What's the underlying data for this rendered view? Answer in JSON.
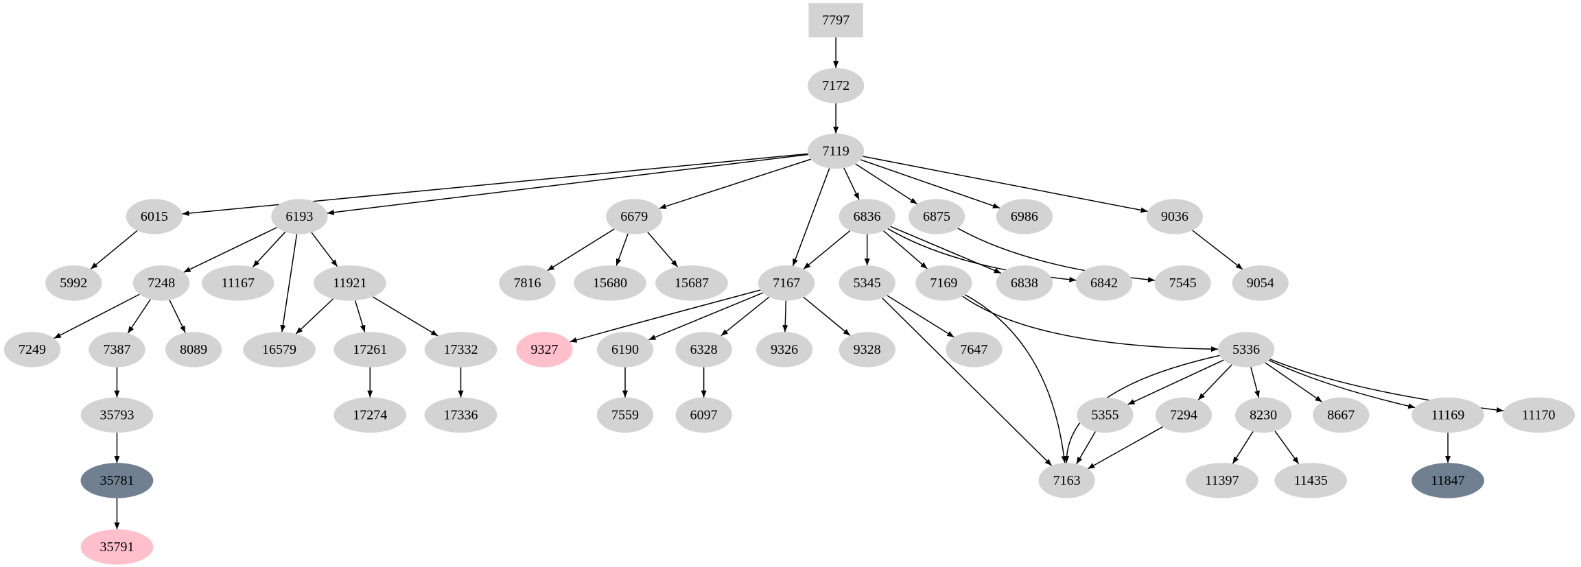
{
  "graph": {
    "default_color": "#d3d3d3",
    "nodes": [
      {
        "id": "7797",
        "shape": "box"
      },
      {
        "id": "7172"
      },
      {
        "id": "7119"
      },
      {
        "id": "6015"
      },
      {
        "id": "6193"
      },
      {
        "id": "6679"
      },
      {
        "id": "6836"
      },
      {
        "id": "6875"
      },
      {
        "id": "6986"
      },
      {
        "id": "9036"
      },
      {
        "id": "5992"
      },
      {
        "id": "7248"
      },
      {
        "id": "11167"
      },
      {
        "id": "11921"
      },
      {
        "id": "7816"
      },
      {
        "id": "15680"
      },
      {
        "id": "15687"
      },
      {
        "id": "7167"
      },
      {
        "id": "5345"
      },
      {
        "id": "7169"
      },
      {
        "id": "6838"
      },
      {
        "id": "6842"
      },
      {
        "id": "7545"
      },
      {
        "id": "9054"
      },
      {
        "id": "7249"
      },
      {
        "id": "7387"
      },
      {
        "id": "8089"
      },
      {
        "id": "16579"
      },
      {
        "id": "17261"
      },
      {
        "id": "17332"
      },
      {
        "id": "9327",
        "color": "#ffc0cb"
      },
      {
        "id": "6190"
      },
      {
        "id": "6328"
      },
      {
        "id": "9326"
      },
      {
        "id": "9328"
      },
      {
        "id": "7647"
      },
      {
        "id": "5336"
      },
      {
        "id": "35793"
      },
      {
        "id": "17274"
      },
      {
        "id": "17336"
      },
      {
        "id": "7559"
      },
      {
        "id": "6097"
      },
      {
        "id": "5355"
      },
      {
        "id": "7294"
      },
      {
        "id": "8230"
      },
      {
        "id": "8667"
      },
      {
        "id": "11169"
      },
      {
        "id": "11170"
      },
      {
        "id": "35781",
        "color": "#708090"
      },
      {
        "id": "7163"
      },
      {
        "id": "11397"
      },
      {
        "id": "11435"
      },
      {
        "id": "11847",
        "color": "#708090"
      },
      {
        "id": "35791",
        "color": "#ffc0cb"
      }
    ],
    "edges": [
      [
        "7797",
        "7172"
      ],
      [
        "7172",
        "7119"
      ],
      [
        "7119",
        "6015"
      ],
      [
        "7119",
        "6193"
      ],
      [
        "7119",
        "6679"
      ],
      [
        "7119",
        "7167"
      ],
      [
        "7119",
        "6836"
      ],
      [
        "7119",
        "6875"
      ],
      [
        "7119",
        "6986"
      ],
      [
        "7119",
        "9036"
      ],
      [
        "6015",
        "5992"
      ],
      [
        "6193",
        "7248"
      ],
      [
        "6193",
        "11167"
      ],
      [
        "6193",
        "16579"
      ],
      [
        "6193",
        "11921"
      ],
      [
        "6679",
        "7816"
      ],
      [
        "6679",
        "15680"
      ],
      [
        "6679",
        "15687"
      ],
      [
        "6836",
        "7167"
      ],
      [
        "6836",
        "5345"
      ],
      [
        "6836",
        "7169"
      ],
      [
        "6836",
        "6838"
      ],
      [
        "6836",
        "6842"
      ],
      [
        "6875",
        "7545"
      ],
      [
        "9036",
        "9054"
      ],
      [
        "7248",
        "7249"
      ],
      [
        "7248",
        "7387"
      ],
      [
        "7248",
        "8089"
      ],
      [
        "11921",
        "16579"
      ],
      [
        "11921",
        "17261"
      ],
      [
        "11921",
        "17332"
      ],
      [
        "7167",
        "9327"
      ],
      [
        "7167",
        "6190"
      ],
      [
        "7167",
        "6328"
      ],
      [
        "7167",
        "9326"
      ],
      [
        "7167",
        "9328"
      ],
      [
        "5345",
        "7647"
      ],
      [
        "5345",
        "7163"
      ],
      [
        "7169",
        "7163"
      ],
      [
        "7169",
        "5336"
      ],
      [
        "7387",
        "35793"
      ],
      [
        "17261",
        "17274"
      ],
      [
        "17332",
        "17336"
      ],
      [
        "6190",
        "7559"
      ],
      [
        "6328",
        "6097"
      ],
      [
        "5336",
        "7163"
      ],
      [
        "5336",
        "5355"
      ],
      [
        "5336",
        "7294"
      ],
      [
        "5336",
        "8230"
      ],
      [
        "5336",
        "8667"
      ],
      [
        "5336",
        "11169"
      ],
      [
        "5336",
        "11170"
      ],
      [
        "35793",
        "35781"
      ],
      [
        "35781",
        "35791"
      ],
      [
        "5355",
        "7163"
      ],
      [
        "7294",
        "7163"
      ],
      [
        "8230",
        "11397"
      ],
      [
        "8230",
        "11435"
      ],
      [
        "11169",
        "11847"
      ]
    ]
  }
}
